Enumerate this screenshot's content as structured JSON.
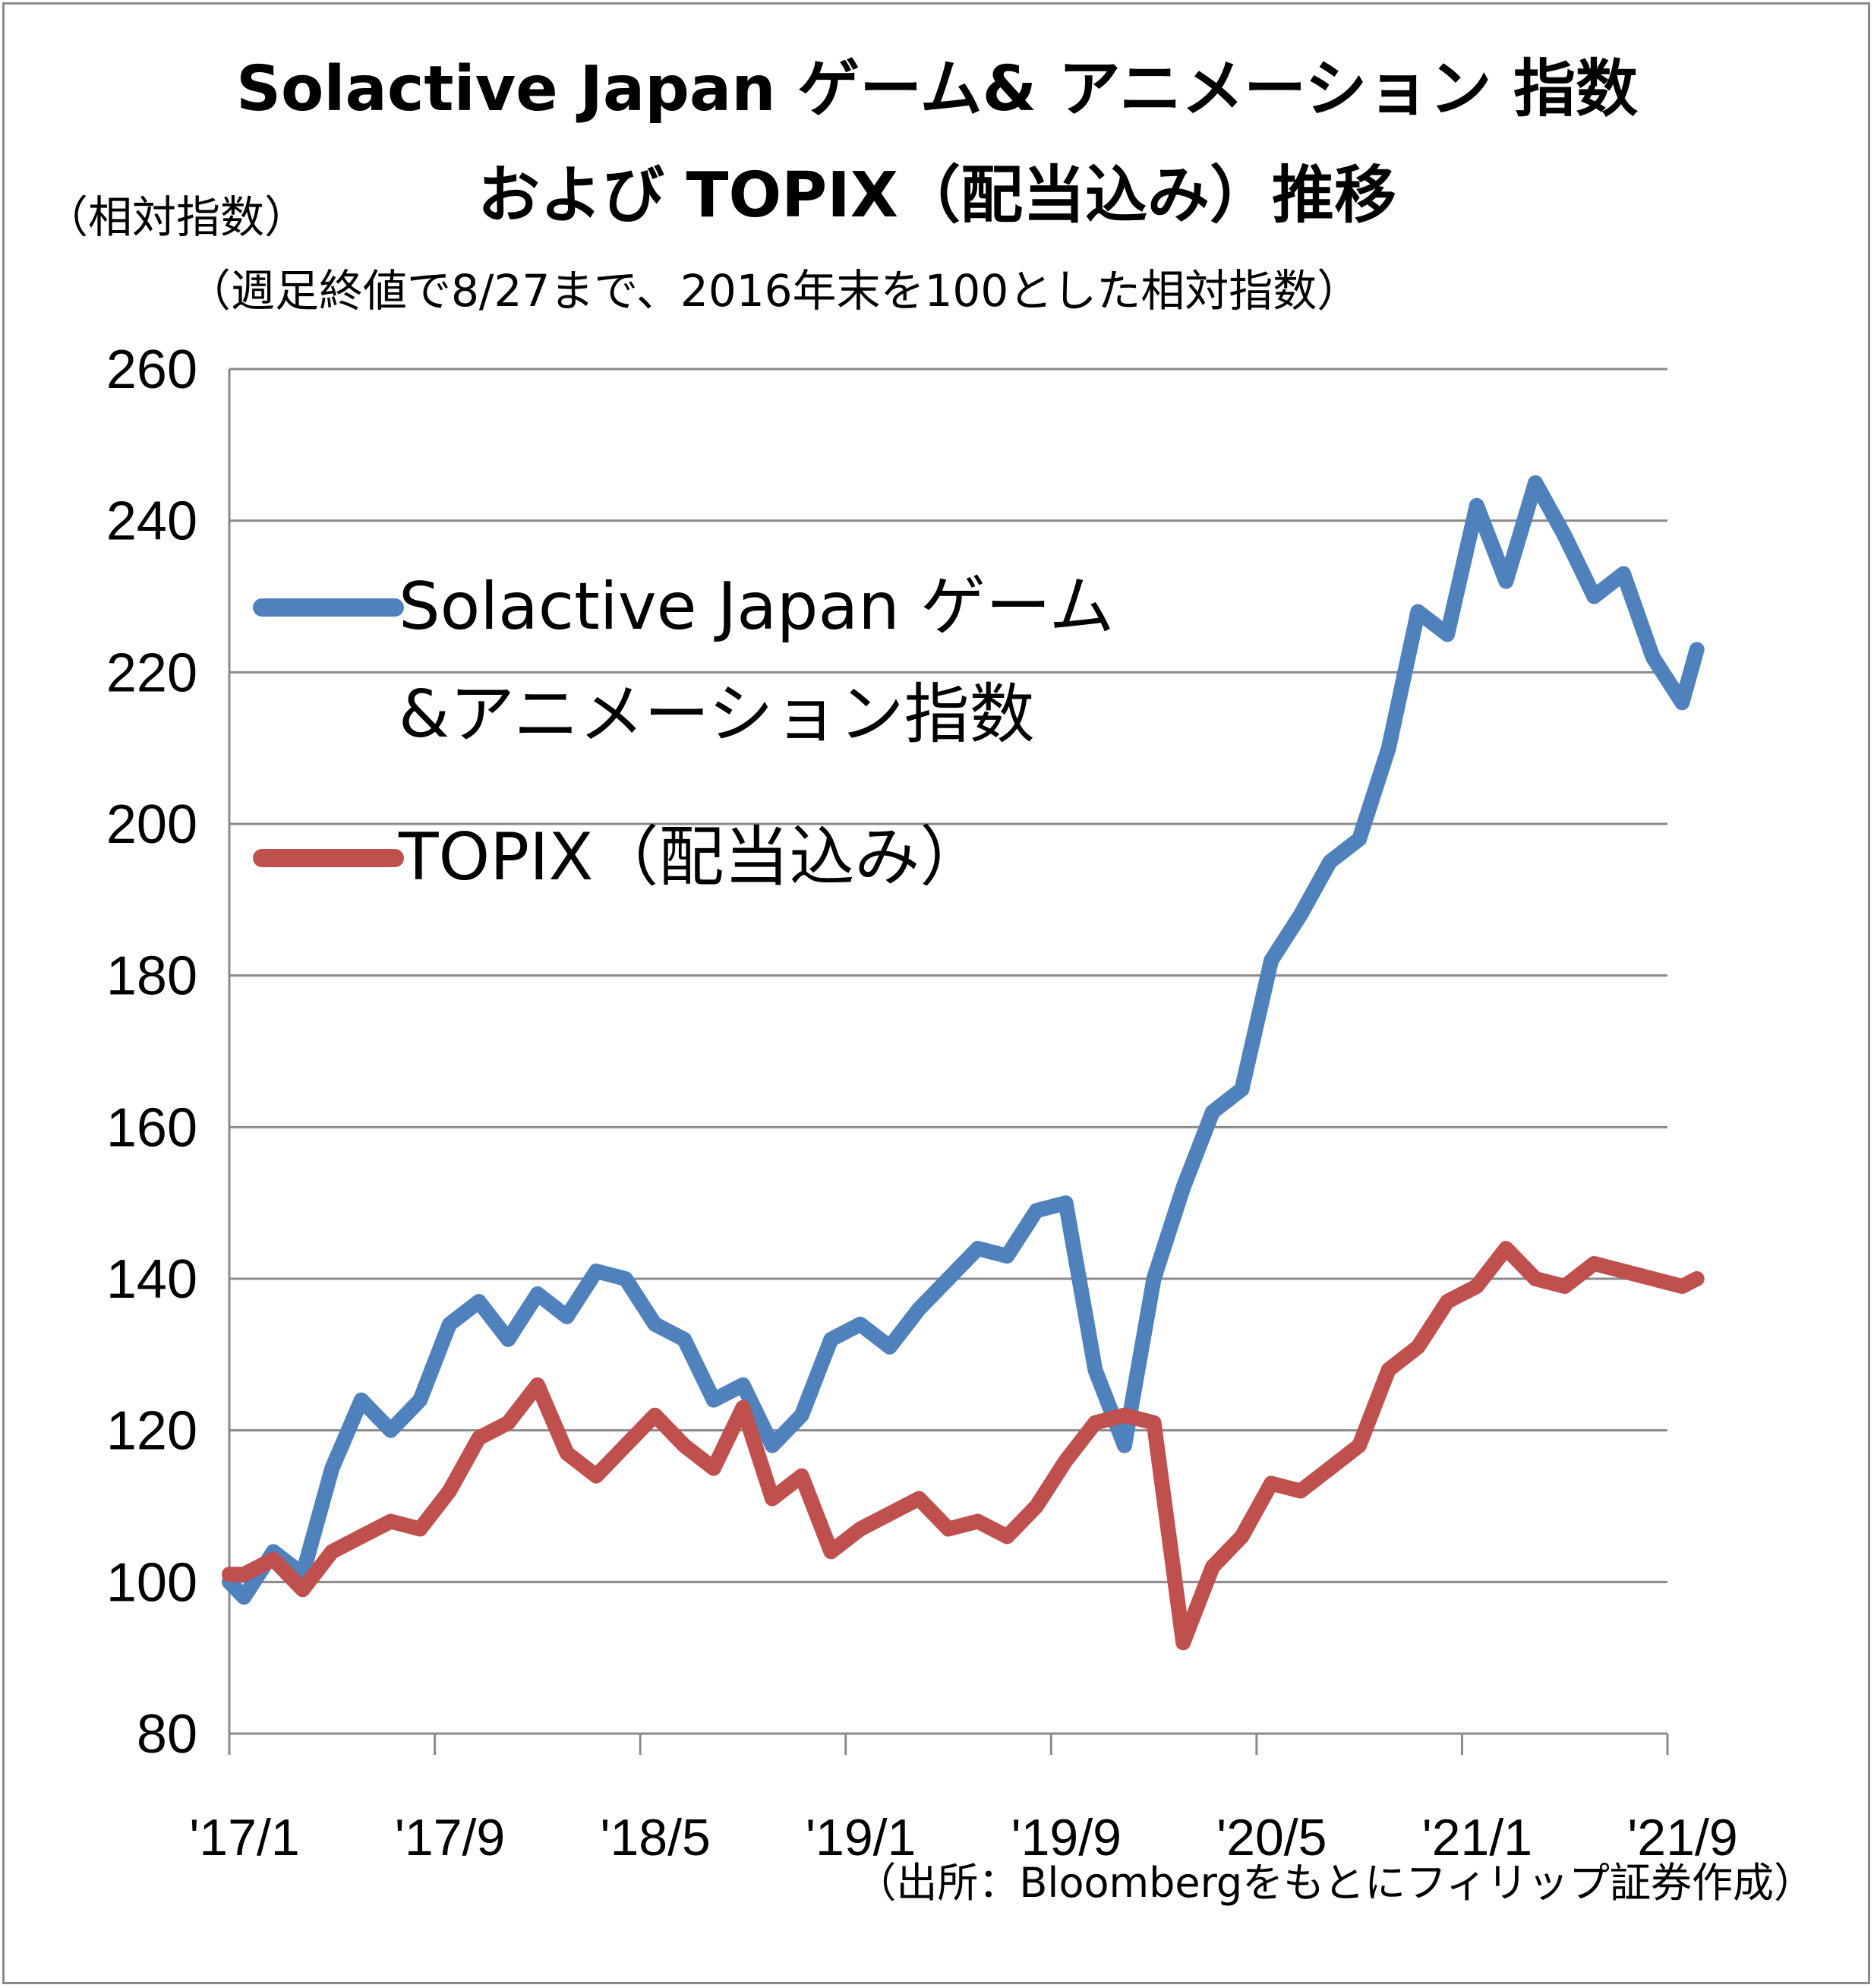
{
  "chart_data": {
    "type": "line",
    "title": "Solactive Japan ゲーム& アニメーション 指数",
    "title_line2": "および TOPIX（配当込み）推移",
    "subtitle": "（週足終値で8/27まで、2016年末を100とした相対指数）",
    "ylabel": "（相対指数）",
    "xlabel": "",
    "source": "（出所：Bloombergをもとにフィリップ証券作成）",
    "ylim": [
      80,
      260
    ],
    "y_ticks": [
      80,
      100,
      120,
      140,
      160,
      180,
      200,
      220,
      240,
      260
    ],
    "x_ticks": [
      "'17/1",
      "'17/9",
      "'18/5",
      "'19/1",
      "'19/9",
      "'20/5",
      "'21/1",
      "'21/9"
    ],
    "grid": "horizontal",
    "legend_position": "upper-left",
    "series": [
      {
        "name": "Solactive Japan ゲーム&アニメーション指数",
        "legend_lines": [
          "Solactive Japan ゲーム",
          "&アニメーション指数"
        ],
        "color": "#4f81bd",
        "points": [
          [
            "'17/1",
            100
          ],
          [
            0.5,
            98
          ],
          [
            1.5,
            104
          ],
          [
            2.5,
            101
          ],
          [
            3.5,
            115
          ],
          [
            4.5,
            124
          ],
          [
            5.5,
            120
          ],
          [
            6.5,
            124
          ],
          [
            7.5,
            134
          ],
          [
            8.5,
            137
          ],
          [
            9.5,
            132
          ],
          [
            10.5,
            138
          ],
          [
            11.5,
            135
          ],
          [
            12.5,
            141
          ],
          [
            13.5,
            140
          ],
          [
            14.5,
            134
          ],
          [
            15.5,
            132
          ],
          [
            16.5,
            124
          ],
          [
            17.5,
            126
          ],
          [
            18.5,
            118
          ],
          [
            19.5,
            122
          ],
          [
            20.5,
            132
          ],
          [
            21.5,
            134
          ],
          [
            22.5,
            131
          ],
          [
            23.5,
            136
          ],
          [
            24.5,
            140
          ],
          [
            25.5,
            144
          ],
          [
            26.5,
            143
          ],
          [
            27.5,
            149
          ],
          [
            28.5,
            150
          ],
          [
            29.5,
            128
          ],
          [
            30.5,
            118
          ],
          [
            31.5,
            140
          ],
          [
            32.5,
            152
          ],
          [
            33.5,
            162
          ],
          [
            34.5,
            165
          ],
          [
            35.5,
            182
          ],
          [
            36.5,
            188
          ],
          [
            37.5,
            195
          ],
          [
            38.5,
            198
          ],
          [
            39.5,
            210
          ],
          [
            40.5,
            228
          ],
          [
            41.5,
            225
          ],
          [
            42.5,
            242
          ],
          [
            43.5,
            232
          ],
          [
            44.5,
            245
          ],
          [
            45.5,
            238
          ],
          [
            46.5,
            230
          ],
          [
            47.5,
            233
          ],
          [
            48.5,
            222
          ],
          [
            49.5,
            216
          ],
          [
            50.0,
            223
          ]
        ]
      },
      {
        "name": "TOPIX（配当込み）",
        "legend_lines": [
          "TOPIX（配当込み）"
        ],
        "color": "#c0504d",
        "points": [
          [
            "'17/1",
            101
          ],
          [
            0.5,
            101
          ],
          [
            1.5,
            103
          ],
          [
            2.5,
            99
          ],
          [
            3.5,
            104
          ],
          [
            4.5,
            106
          ],
          [
            5.5,
            108
          ],
          [
            6.5,
            107
          ],
          [
            7.5,
            112
          ],
          [
            8.5,
            119
          ],
          [
            9.5,
            121
          ],
          [
            10.5,
            126
          ],
          [
            11.5,
            117
          ],
          [
            12.5,
            114
          ],
          [
            13.5,
            118
          ],
          [
            14.5,
            122
          ],
          [
            15.5,
            118
          ],
          [
            16.5,
            115
          ],
          [
            17.5,
            123
          ],
          [
            18.5,
            111
          ],
          [
            19.5,
            114
          ],
          [
            20.5,
            104
          ],
          [
            21.5,
            107
          ],
          [
            22.5,
            109
          ],
          [
            23.5,
            111
          ],
          [
            24.5,
            107
          ],
          [
            25.5,
            108
          ],
          [
            26.5,
            106
          ],
          [
            27.5,
            110
          ],
          [
            28.5,
            116
          ],
          [
            29.5,
            121
          ],
          [
            30.5,
            122
          ],
          [
            31.5,
            121
          ],
          [
            32.5,
            92
          ],
          [
            33.5,
            102
          ],
          [
            34.5,
            106
          ],
          [
            35.5,
            113
          ],
          [
            36.5,
            112
          ],
          [
            37.5,
            115
          ],
          [
            38.5,
            118
          ],
          [
            39.5,
            128
          ],
          [
            40.5,
            131
          ],
          [
            41.5,
            137
          ],
          [
            42.5,
            139
          ],
          [
            43.5,
            144
          ],
          [
            44.5,
            140
          ],
          [
            45.5,
            139
          ],
          [
            46.5,
            142
          ],
          [
            47.5,
            141
          ],
          [
            48.5,
            140
          ],
          [
            49.5,
            139
          ],
          [
            50.0,
            140
          ]
        ]
      }
    ]
  }
}
